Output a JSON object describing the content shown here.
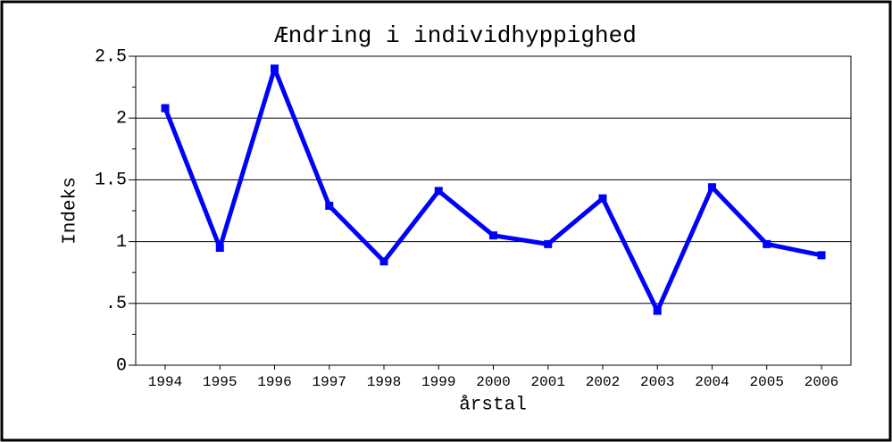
{
  "chart_data": {
    "type": "line",
    "title": "Ændring i individhyppighed",
    "xlabel": "årstal",
    "ylabel": "Indeks",
    "categories": [
      "1994",
      "1995",
      "1996",
      "1997",
      "1998",
      "1999",
      "2000",
      "2001",
      "2002",
      "2003",
      "2004",
      "2005",
      "2006"
    ],
    "series": [
      {
        "name": "Indeks",
        "color": "#0000ff",
        "values": [
          2.08,
          0.95,
          2.4,
          1.29,
          0.84,
          1.41,
          1.05,
          0.98,
          1.35,
          0.44,
          1.44,
          0.98,
          0.89
        ]
      }
    ],
    "ylim": [
      0,
      2.5
    ],
    "yticks": [
      0,
      {
        "value": 0.5,
        "label": ".5"
      },
      1,
      1.5,
      2,
      2.5
    ],
    "yminorticks": [
      0.25,
      0.75,
      1.25,
      1.75,
      2.25
    ],
    "grid": true
  }
}
